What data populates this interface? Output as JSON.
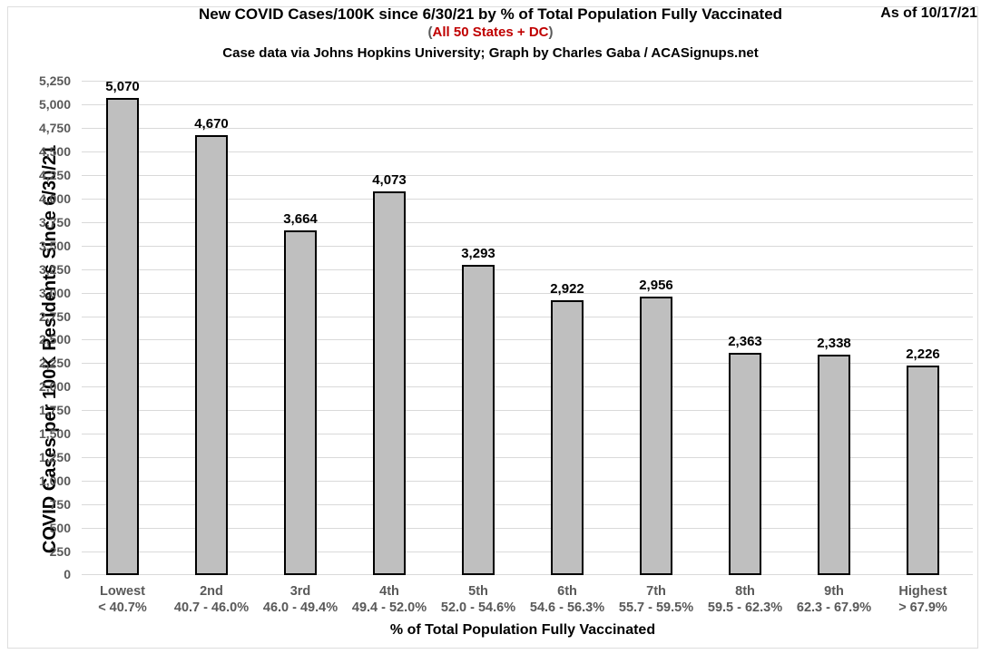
{
  "header": {
    "as_of": "As of 10/17/21",
    "subtitle_open": "(",
    "subtitle_highlight": "All 50 States + DC",
    "subtitle_close": ")"
  },
  "chart_data": {
    "type": "bar",
    "title": "New COVID Cases/100K since 6/30/21 by % of Total Population Fully Vaccinated",
    "subtitle": "(All 50 States + DC)",
    "credit": "Case data via Johns Hopkins University; Graph by Charles Gaba / ACASignups.net",
    "as_of": "As of 10/17/21",
    "categories": [
      "Lowest",
      "2nd",
      "3rd",
      "4th",
      "5th",
      "6th",
      "7th",
      "8th",
      "9th",
      "Highest"
    ],
    "category_ranges": [
      "< 40.7%",
      "40.7 - 46.0%",
      "46.0 - 49.4%",
      "49.4 - 52.0%",
      "52.0 - 54.6%",
      "54.6 - 56.3%",
      "55.7 - 59.5%",
      "59.5 - 62.3%",
      "62.3 - 67.9%",
      "> 67.9%"
    ],
    "values": [
      5070,
      4670,
      3664,
      4073,
      3293,
      2922,
      2956,
      2363,
      2338,
      2226
    ],
    "value_labels": [
      "5,070",
      "4,670",
      "3,664",
      "4,073",
      "3,293",
      "2,922",
      "2,956",
      "2,363",
      "2,338",
      "2,226"
    ],
    "xlabel": "% of Total Population Fully Vaccinated",
    "ylabel": "COVID Cases per 100K Residents Since 6/30/21",
    "ylim": [
      0,
      5250
    ],
    "ytick_step": 250,
    "grid": true,
    "legend": false,
    "colors": {
      "bar_fill": "#bfbfbf",
      "bar_border": "#000000",
      "gridline": "#d9d9d9",
      "axis_text": "#595959",
      "title_text": "#000000",
      "accent_red": "#c00000"
    }
  }
}
